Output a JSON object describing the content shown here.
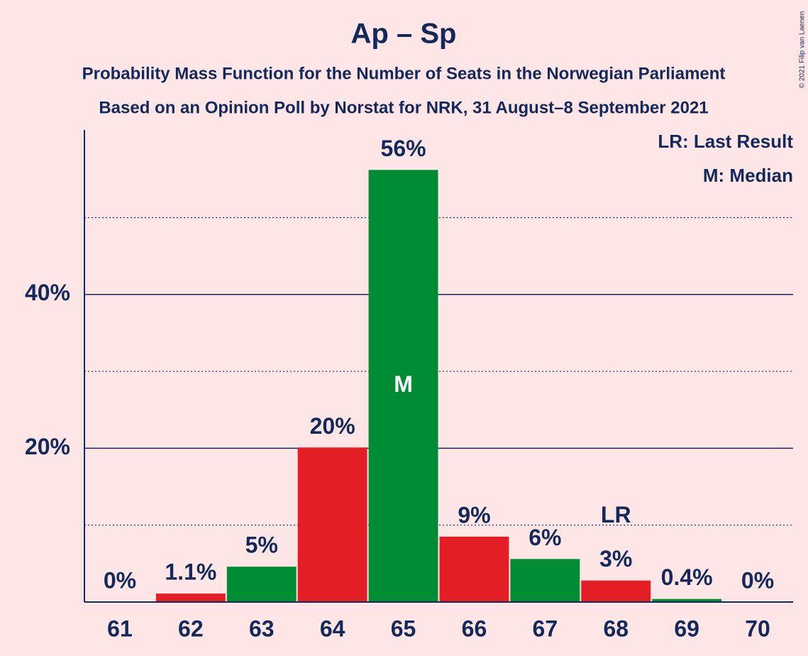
{
  "chart_data": {
    "type": "bar",
    "title": "Ap – Sp",
    "subtitles": [
      "Probability Mass Function for the Number of Seats in the Norwegian Parliament",
      "Based on an Opinion Poll by Norstat for NRK, 31 August–8 September 2021"
    ],
    "categories": [
      "61",
      "62",
      "63",
      "64",
      "65",
      "66",
      "67",
      "68",
      "69",
      "70"
    ],
    "values": [
      0,
      1.1,
      4.6,
      20.1,
      56.2,
      8.5,
      5.6,
      2.8,
      0.4,
      0
    ],
    "value_labels": [
      "0%",
      "1.1%",
      "5%",
      "20%",
      "56%",
      "9%",
      "6%",
      "3%",
      "0.4%",
      "0%"
    ],
    "colors": [
      "#e31e24",
      "#e31e24",
      "#008c35",
      "#e31e24",
      "#008c35",
      "#e31e24",
      "#008c35",
      "#e31e24",
      "#008c35",
      "#e31e24"
    ],
    "ylim": [
      0,
      61.4
    ],
    "yticks": [
      {
        "value": 20,
        "label": "20%"
      },
      {
        "value": 40,
        "label": "40%"
      }
    ],
    "minor_grid": [
      10,
      30,
      50
    ],
    "grid": true,
    "annotations": [
      {
        "text": "M",
        "category": "65",
        "position": "inside"
      },
      {
        "text": "LR",
        "category": "68",
        "position": "above"
      }
    ],
    "legend": [
      "LR: Last Result",
      "M: Median"
    ],
    "legend_position": "top-right",
    "copyright": "© 2021 Filip van Laenen"
  }
}
